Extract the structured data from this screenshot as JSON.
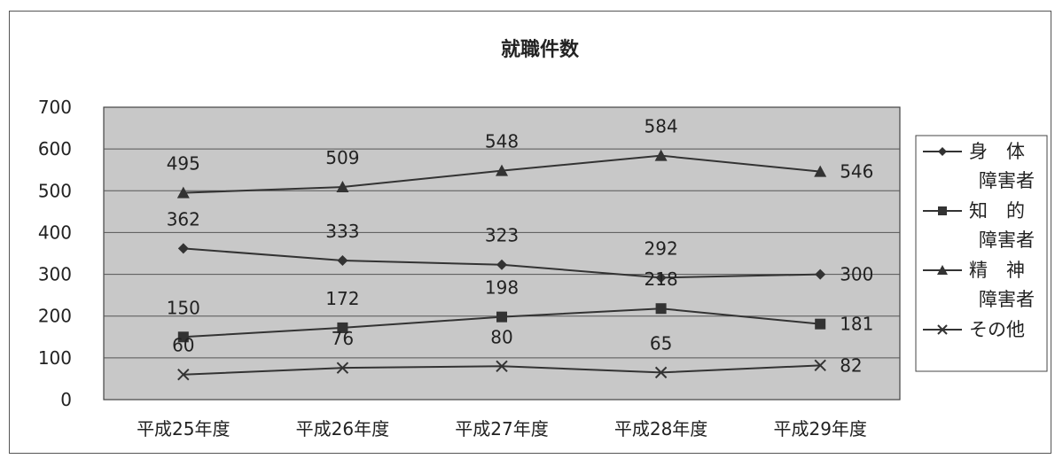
{
  "chart_data": {
    "type": "line",
    "title": "就職件数",
    "xlabel": "",
    "ylabel": "",
    "categories": [
      "平成25年度",
      "平成26年度",
      "平成27年度",
      "平成28年度",
      "平成29年度"
    ],
    "ylim": [
      0,
      700
    ],
    "yticks": [
      0,
      100,
      200,
      300,
      400,
      500,
      600,
      700
    ],
    "grid": true,
    "legend_position": "right",
    "series": [
      {
        "name": "身体障害者",
        "legend_lines": [
          "身　体",
          "障害者"
        ],
        "marker": "diamond",
        "values": [
          362,
          333,
          323,
          292,
          300
        ]
      },
      {
        "name": "知的障害者",
        "legend_lines": [
          "知　的",
          "障害者"
        ],
        "marker": "square",
        "values": [
          150,
          172,
          198,
          218,
          181
        ]
      },
      {
        "name": "精神障害者",
        "legend_lines": [
          "精　神",
          "障害者"
        ],
        "marker": "triangle",
        "values": [
          495,
          509,
          548,
          584,
          546
        ]
      },
      {
        "name": "その他",
        "legend_lines": [
          "その他"
        ],
        "marker": "x",
        "values": [
          60,
          76,
          80,
          65,
          82
        ]
      }
    ],
    "colors": {
      "plot_background": "#c8c8c8",
      "line": "#333333",
      "gridline": "#555555"
    }
  }
}
